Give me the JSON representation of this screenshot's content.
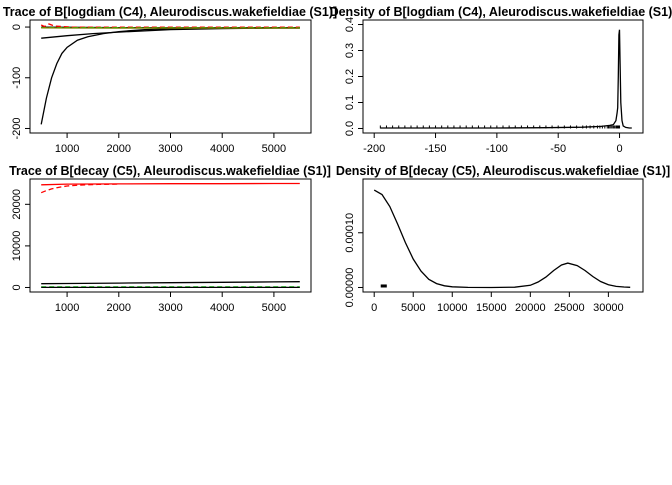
{
  "chart_data": [
    {
      "type": "line",
      "title": "Trace of B[logdiam (C4), Aleurodiscus.wakefieldiae (S1)]",
      "xlim": [
        500,
        5500
      ],
      "ylim": [
        -200,
        5
      ],
      "xticks": [
        {
          "value": 1000,
          "label": "1000"
        },
        {
          "value": 2000,
          "label": "2000"
        },
        {
          "value": 3000,
          "label": "3000"
        },
        {
          "value": 4000,
          "label": "4000"
        },
        {
          "value": 5000,
          "label": "5000"
        }
      ],
      "yticks": [
        {
          "value": 0,
          "label": "0"
        },
        {
          "value": -100,
          "label": "-100"
        },
        {
          "value": -200,
          "label": "-200"
        }
      ],
      "series": [
        {
          "color": "#000000",
          "dash": "solid",
          "x": [
            500,
            600,
            700,
            800,
            900,
            1000,
            1200,
            1400,
            1700,
            2000,
            2500,
            3000,
            4000,
            5000,
            5500
          ],
          "values": [
            -192,
            -140,
            -100,
            -72,
            -52,
            -40,
            -26,
            -19,
            -13,
            -9,
            -5,
            -3,
            -1.5,
            -1,
            -1
          ]
        },
        {
          "color": "#000000",
          "dash": "solid",
          "x": [
            500,
            1000,
            1500,
            2000,
            3000,
            4000,
            5000,
            5500
          ],
          "values": [
            -22,
            -17,
            -13,
            -10,
            -5,
            -3,
            -2,
            -2
          ]
        },
        {
          "color": "#000000",
          "dash": "solid",
          "x": [
            500,
            1000,
            2000,
            3000,
            4000,
            5500
          ],
          "values": [
            0,
            -0.5,
            -1,
            -1.5,
            -1.5,
            -1.5
          ]
        },
        {
          "color": "#ff0000",
          "dash": "dashed",
          "x": [
            500,
            560,
            650,
            750,
            900,
            1100,
            1500,
            2500,
            5500
          ],
          "values": [
            4,
            1,
            6,
            2,
            1,
            0,
            0,
            0,
            0
          ]
        },
        {
          "color": "#00cd00",
          "dash": "dashed",
          "x": [
            500,
            1000,
            2000,
            3000,
            4000,
            5500
          ],
          "values": [
            -1,
            -1,
            -1.2,
            -1.5,
            -1.5,
            -1.5
          ]
        },
        {
          "color": "#808000",
          "dash": "solid",
          "x": [
            500,
            1000,
            2000,
            3000,
            4000,
            5500
          ],
          "values": [
            -1.5,
            -1.8,
            -2,
            -2,
            -2,
            -2
          ]
        }
      ]
    },
    {
      "type": "line",
      "title": "Density of B[logdiam (C4), Aleurodiscus.wakefieldiae (S1)]",
      "xlim": [
        -200,
        10
      ],
      "ylim": [
        0,
        0.4
      ],
      "xticks": [
        {
          "value": -200,
          "label": "-200"
        },
        {
          "value": -150,
          "label": "-150"
        },
        {
          "value": -100,
          "label": "-100"
        },
        {
          "value": -50,
          "label": "-50"
        },
        {
          "value": 0,
          "label": "0"
        }
      ],
      "yticks": [
        {
          "value": 0,
          "label": "0.0"
        },
        {
          "value": 0.1,
          "label": "0.1"
        },
        {
          "value": 0.2,
          "label": "0.2"
        },
        {
          "value": 0.3,
          "label": "0.3"
        },
        {
          "value": 0.4,
          "label": "0.4"
        }
      ],
      "series": [
        {
          "color": "#000000",
          "dash": "solid",
          "x": [
            -195,
            -150,
            -100,
            -60,
            -30,
            -15,
            -8,
            -5,
            -3,
            -2,
            -1.5,
            -1,
            -0.5,
            0,
            0.5,
            1,
            2,
            3,
            5,
            8,
            10
          ],
          "values": [
            0.002,
            0.002,
            0.002,
            0.003,
            0.005,
            0.008,
            0.012,
            0.015,
            0.03,
            0.06,
            0.08,
            0.2,
            0.36,
            0.38,
            0.25,
            0.1,
            0.03,
            0.01,
            0.004,
            0.002,
            0.002
          ]
        }
      ],
      "rug": {
        "x": [
          -195,
          -190,
          -185,
          -180,
          -175,
          -170,
          -165,
          -160,
          -155,
          -150,
          -145,
          -140,
          -135,
          -130,
          -125,
          -120,
          -115,
          -110,
          -105,
          -100,
          -95,
          -90,
          -85,
          -80,
          -75,
          -70,
          -65,
          -60,
          -55,
          -50,
          -45,
          -40,
          -35,
          -30,
          -27,
          -24,
          -21,
          -18,
          -16,
          -14,
          -12,
          -10,
          -9,
          -8,
          -7,
          -6,
          -5,
          -4,
          -3,
          -2.5,
          -2,
          -1.5,
          -1,
          -0.5,
          0
        ]
      }
    },
    {
      "type": "line",
      "title": "Trace of B[decay (C5), Aleurodiscus.wakefieldiae (S1)]",
      "xlim": [
        500,
        5500
      ],
      "ylim": [
        0,
        25000
      ],
      "xticks": [
        {
          "value": 1000,
          "label": "1000"
        },
        {
          "value": 2000,
          "label": "2000"
        },
        {
          "value": 3000,
          "label": "3000"
        },
        {
          "value": 4000,
          "label": "4000"
        },
        {
          "value": 5000,
          "label": "5000"
        }
      ],
      "yticks": [
        {
          "value": 0,
          "label": "0"
        },
        {
          "value": 10000,
          "label": "10000"
        },
        {
          "value": 20000,
          "label": "20000"
        }
      ],
      "series": [
        {
          "color": "#ff0000",
          "dash": "solid",
          "x": [
            500,
            1000,
            2000,
            3000,
            4000,
            5000,
            5500
          ],
          "values": [
            24700,
            24850,
            24900,
            24950,
            24950,
            25000,
            25000
          ]
        },
        {
          "color": "#ff0000",
          "dash": "dashed",
          "x": [
            500,
            600,
            700,
            800,
            900,
            1000,
            1100,
            1200,
            1400,
            1600,
            2000
          ],
          "values": [
            22800,
            23300,
            23700,
            24000,
            24200,
            24400,
            24500,
            24600,
            24700,
            24800,
            24850
          ]
        },
        {
          "color": "#000000",
          "dash": "solid",
          "x": [
            500,
            1000,
            2000,
            3000,
            4000,
            5000,
            5500
          ],
          "values": [
            900,
            950,
            1050,
            1150,
            1250,
            1350,
            1400
          ]
        },
        {
          "color": "#00cd00",
          "dash": "dashed",
          "x": [
            500,
            1000,
            2000,
            3000,
            4000,
            5000,
            5500
          ],
          "values": [
            150,
            150,
            150,
            150,
            150,
            150,
            150
          ]
        },
        {
          "color": "#000000",
          "dash": "solid",
          "x": [
            500,
            5500
          ],
          "values": [
            30,
            30
          ]
        }
      ]
    },
    {
      "type": "line",
      "title": "Density of B[decay (C5), Aleurodiscus.wakefieldiae (S1)]",
      "xlim": [
        0,
        33000
      ],
      "ylim": [
        0,
        0.00019
      ],
      "xticks": [
        {
          "value": 0,
          "label": "0"
        },
        {
          "value": 5000,
          "label": "5000"
        },
        {
          "value": 10000,
          "label": "10000"
        },
        {
          "value": 15000,
          "label": "15000"
        },
        {
          "value": 20000,
          "label": "20000"
        },
        {
          "value": 25000,
          "label": "25000"
        },
        {
          "value": 30000,
          "label": "30000"
        }
      ],
      "yticks": [
        {
          "value": 0,
          "label": "0.00000"
        },
        {
          "value": 0.0001,
          "label": "0.00010"
        }
      ],
      "series": [
        {
          "color": "#000000",
          "dash": "solid",
          "x": [
            0,
            1000,
            2000,
            3000,
            4000,
            5000,
            6000,
            7000,
            8000,
            9000,
            10000,
            12000,
            15000,
            18000,
            20000,
            21000,
            22000,
            23000,
            24000,
            24800,
            26000,
            27000,
            28000,
            29000,
            30000,
            31000,
            32000,
            32800
          ],
          "values": [
            0.000178,
            0.00017,
            0.000148,
            0.000116,
            8.2e-05,
            5.2e-05,
            3e-05,
            1.5e-05,
            7e-06,
            3e-06,
            1.2e-06,
            2e-07,
            0,
            5e-07,
            4e-06,
            1e-05,
            1.9e-05,
            3.1e-05,
            4.1e-05,
            4.45e-05,
            4e-05,
            3.1e-05,
            2e-05,
            1.1e-05,
            5e-06,
            2e-06,
            8e-07,
            3e-07
          ]
        }
      ],
      "rug": {
        "x": [
          900,
          950,
          1000,
          1050,
          1100,
          1150,
          1200,
          1250,
          1300,
          1350,
          1400,
          1450,
          1500,
          1550
        ]
      }
    }
  ]
}
